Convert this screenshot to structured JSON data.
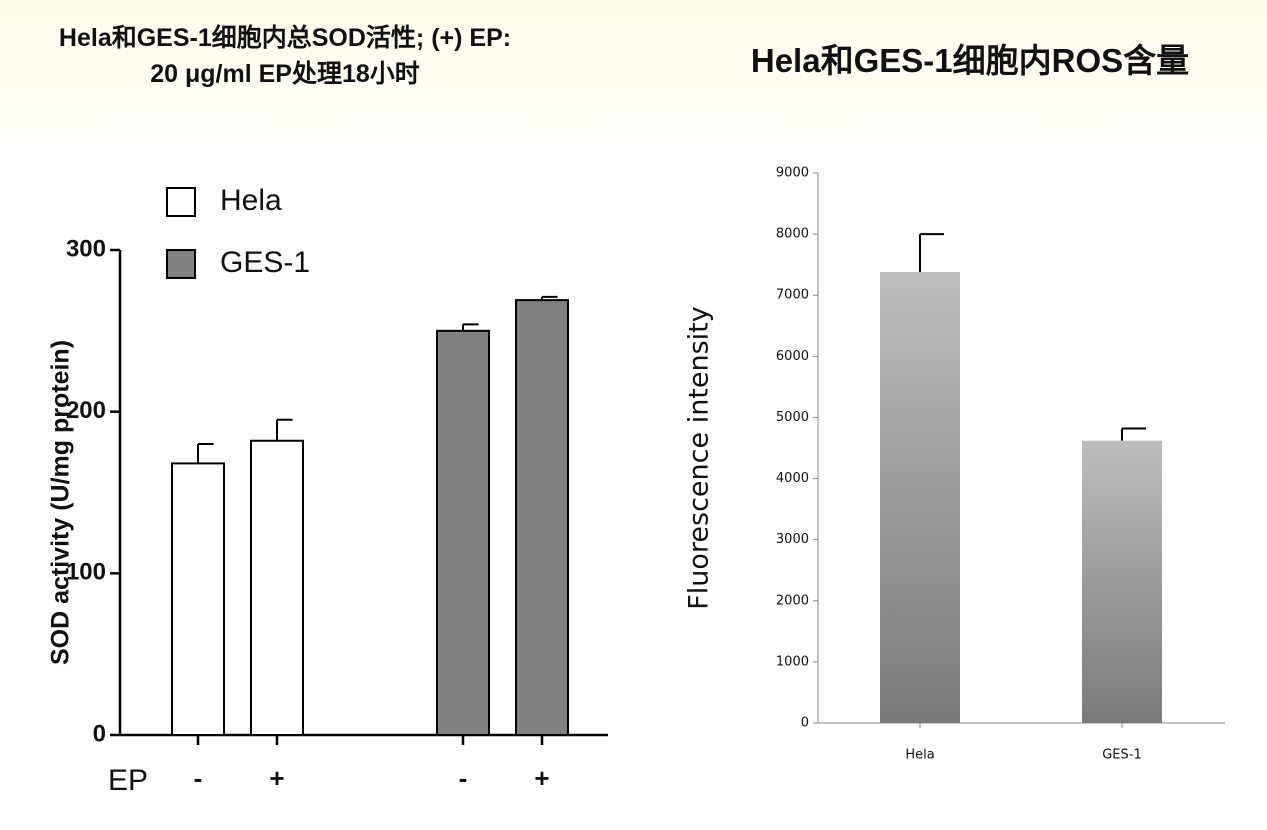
{
  "chart_data": [
    {
      "type": "bar",
      "title": "Hela和GES-1细胞内总SOD活性; (+) EP: 20 μg/ml EP处理18小时",
      "y_label": "SOD activity (U/mg protein)",
      "x_label": "EP",
      "categories": [
        "-",
        "+",
        "-",
        "+"
      ],
      "series": [
        {
          "name": "Hela",
          "color": "#ffffff",
          "values": [
            168,
            182,
            null,
            null
          ],
          "errors": [
            12,
            13,
            null,
            null
          ]
        },
        {
          "name": "GES-1",
          "color": "#808080",
          "values": [
            null,
            null,
            250,
            269
          ],
          "errors": [
            null,
            null,
            4,
            2
          ]
        }
      ],
      "ylim": [
        0,
        300
      ],
      "yticks": [
        0,
        100,
        200,
        300
      ]
    },
    {
      "type": "bar",
      "title": "Hela和GES-1细胞内ROS含量",
      "y_label": "Fluorescence intensity",
      "categories": [
        "Hela",
        "GES-1"
      ],
      "values": [
        7380,
        4620
      ],
      "errors": [
        620,
        200
      ],
      "color": "#9e9e9e",
      "ylim": [
        0,
        9000
      ],
      "yticks": [
        0,
        1000,
        2000,
        3000,
        4000,
        5000,
        6000,
        7000,
        8000,
        9000
      ]
    }
  ]
}
